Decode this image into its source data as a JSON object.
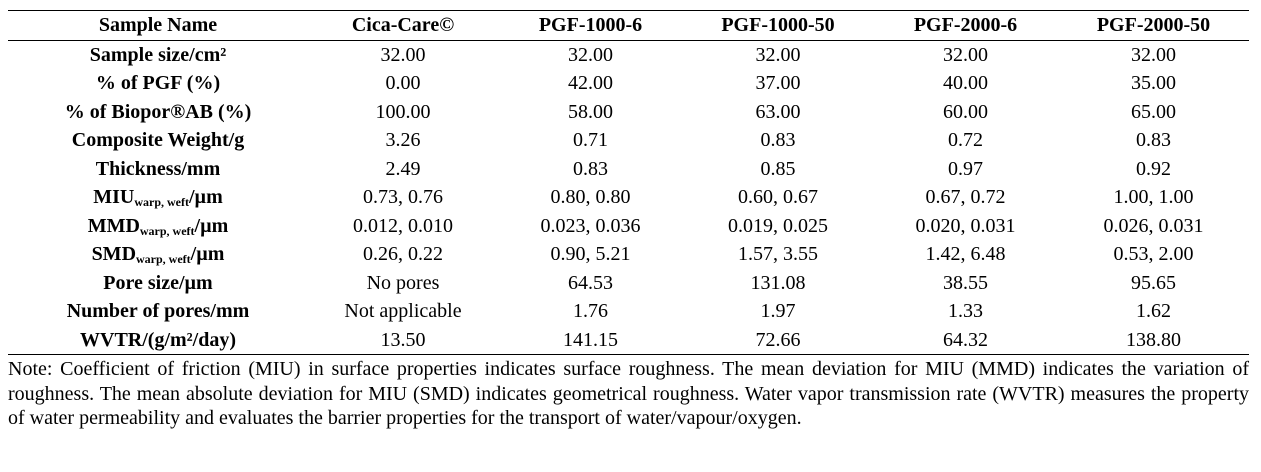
{
  "table": {
    "headers": [
      "Sample Name",
      "Cica-Care©",
      "PGF-1000-6",
      "PGF-1000-50",
      "PGF-2000-6",
      "PGF-2000-50"
    ],
    "rows": [
      {
        "label": "Sample size/cm²",
        "label_sub": "",
        "label_unit": "",
        "values": [
          "32.00",
          "32.00",
          "32.00",
          "32.00",
          "32.00"
        ]
      },
      {
        "label": "% of PGF (%)",
        "label_sub": "",
        "label_unit": "",
        "values": [
          "0.00",
          "42.00",
          "37.00",
          "40.00",
          "35.00"
        ]
      },
      {
        "label": "% of Biopor®AB (%)",
        "label_sub": "",
        "label_unit": "",
        "values": [
          "100.00",
          "58.00",
          "63.00",
          "60.00",
          "65.00"
        ]
      },
      {
        "label": "Composite Weight/g",
        "label_sub": "",
        "label_unit": "",
        "values": [
          "3.26",
          "0.71",
          "0.83",
          "0.72",
          "0.83"
        ]
      },
      {
        "label": "Thickness/mm",
        "label_sub": "",
        "label_unit": "",
        "values": [
          "2.49",
          "0.83",
          "0.85",
          "0.97",
          "0.92"
        ]
      },
      {
        "label": "MIU",
        "label_sub": "warp, weft",
        "label_unit": "/µm",
        "values": [
          "0.73, 0.76",
          "0.80, 0.80",
          "0.60, 0.67",
          "0.67, 0.72",
          "1.00, 1.00"
        ]
      },
      {
        "label": "MMD",
        "label_sub": "warp, weft",
        "label_unit": "/µm",
        "values": [
          "0.012, 0.010",
          "0.023, 0.036",
          "0.019, 0.025",
          "0.020, 0.031",
          "0.026, 0.031"
        ]
      },
      {
        "label": "SMD",
        "label_sub": "warp, weft",
        "label_unit": "/µm",
        "values": [
          "0.26, 0.22",
          "0.90, 5.21",
          "1.57, 3.55",
          "1.42, 6.48",
          "0.53, 2.00"
        ]
      },
      {
        "label": "Pore size/µm",
        "label_sub": "",
        "label_unit": "",
        "values": [
          "No pores",
          "64.53",
          "131.08",
          "38.55",
          "95.65"
        ]
      },
      {
        "label": "Number of pores/mm",
        "label_sub": "",
        "label_unit": "",
        "values": [
          "Not applicable",
          "1.76",
          "1.97",
          "1.33",
          "1.62"
        ]
      },
      {
        "label": "WVTR/(g/m²/day)",
        "label_sub": "",
        "label_unit": "",
        "values": [
          "13.50",
          "141.15",
          "72.66",
          "64.32",
          "138.80"
        ]
      }
    ]
  },
  "note": "Note: Coefficient of friction (MIU) in surface properties indicates surface roughness. The mean deviation for MIU (MMD) indicates the variation of roughness. The mean absolute deviation for MIU (SMD) indicates geometrical roughness. Water vapor transmission rate (WVTR) measures the property of water permeability and evaluates the barrier properties for the transport of water/vapour/oxygen."
}
